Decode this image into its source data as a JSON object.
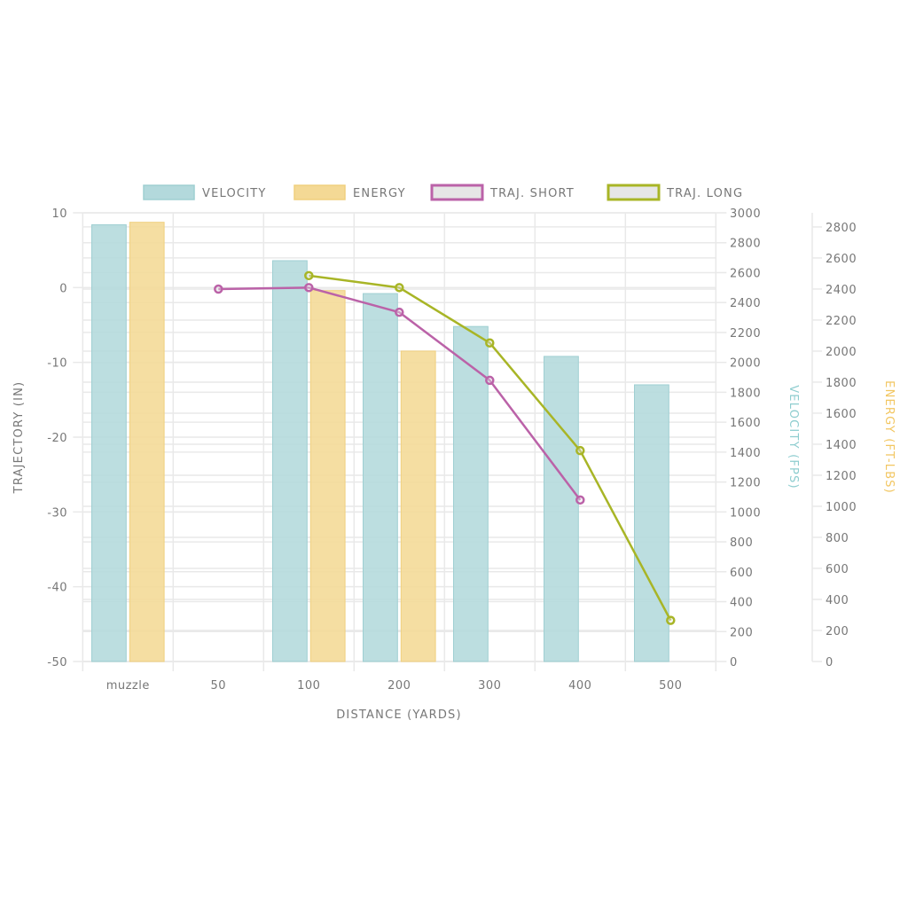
{
  "chart_data": {
    "type": "bar",
    "title": "",
    "categories": [
      "muzzle",
      "50",
      "100",
      "200",
      "300",
      "400",
      "500"
    ],
    "xlabel": "DISTANCE (YARDS)",
    "series": [
      {
        "name": "VELOCITY",
        "type": "bar",
        "axis": "velocity",
        "color": "#b3d9dc",
        "border": "#9fcfd2",
        "values": [
          2920,
          null,
          2680,
          2460,
          2240,
          2040,
          1850
        ]
      },
      {
        "name": "ENERGY",
        "type": "bar",
        "axis": "energy",
        "color": "#f4d995",
        "border": "#f0d07f",
        "values": [
          2830,
          null,
          2390,
          2000,
          null,
          null,
          null
        ]
      },
      {
        "name": "TRAJ. SHORT",
        "type": "line",
        "axis": "trajectory",
        "color": "#bb62a8",
        "legend_fill": "#e6e6e6",
        "values": [
          null,
          -0.2,
          0,
          -3.3,
          -12.4,
          -28.4,
          null
        ]
      },
      {
        "name": "TRAJ. LONG",
        "type": "line",
        "axis": "trajectory",
        "color": "#a8b526",
        "legend_fill": "#e6e6e6",
        "values": [
          null,
          null,
          1.6,
          0,
          -7.4,
          -21.8,
          -44.5
        ]
      }
    ],
    "axes": {
      "trajectory": {
        "label": "TRAJECTORY (IN)",
        "ylim": [
          -50,
          10
        ],
        "step": 10,
        "position": "left",
        "ticks": [
          "10",
          "0",
          "-10",
          "-20",
          "-30",
          "-40",
          "-50"
        ],
        "title_color": "#777777"
      },
      "velocity": {
        "label": "VELOCITY (FPS)",
        "ylim": [
          0,
          3000
        ],
        "step": 200,
        "position": "right",
        "ticks": [
          "3000",
          "2800",
          "2600",
          "2400",
          "2200",
          "2000",
          "1800",
          "1600",
          "1400",
          "1200",
          "1000",
          "800",
          "600",
          "400",
          "200",
          "0"
        ],
        "title_color": "#8ecdcf"
      },
      "energy": {
        "label": "ENERGY (FT-LBS)",
        "ylim": [
          0,
          2891
        ],
        "step": 200,
        "position": "right",
        "ticks": [
          "2800",
          "2600",
          "2400",
          "2200",
          "2000",
          "1800",
          "1600",
          "1400",
          "1200",
          "1000",
          "800",
          "600",
          "400",
          "200",
          "0"
        ],
        "title_color": "#f2c661"
      }
    },
    "grid": true,
    "legend": "top"
  }
}
